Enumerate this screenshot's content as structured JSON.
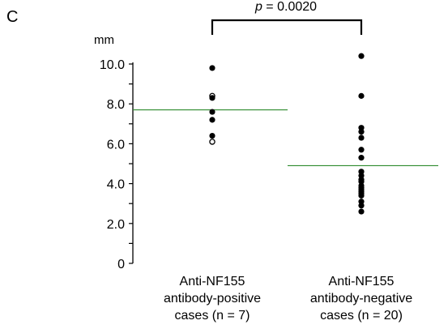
{
  "panel_label": "C",
  "chart_data": {
    "type": "scatter",
    "ylabel": "mm",
    "ylim": [
      0,
      10
    ],
    "yticks": [
      {
        "value": 0,
        "label": "0"
      },
      {
        "value": 2,
        "label": "2.0"
      },
      {
        "value": 4,
        "label": "4.0"
      },
      {
        "value": 6,
        "label": "6.0"
      },
      {
        "value": 8,
        "label": "8.0"
      },
      {
        "value": 10,
        "label": "10.0"
      }
    ],
    "categories": [
      {
        "label_lines": [
          "Anti-NF155",
          "antibody-positive",
          "cases (n = 7)"
        ],
        "mean": 7.7,
        "points": [
          {
            "y": 9.8,
            "filled": true
          },
          {
            "y": 8.4,
            "filled": false
          },
          {
            "y": 8.3,
            "filled": true
          },
          {
            "y": 7.6,
            "filled": true
          },
          {
            "y": 7.2,
            "filled": true
          },
          {
            "y": 6.4,
            "filled": true
          },
          {
            "y": 6.1,
            "filled": false
          }
        ]
      },
      {
        "label_lines": [
          "Anti-NF155",
          "antibody-negative",
          "cases (n = 20)"
        ],
        "mean": 4.9,
        "points": [
          {
            "y": 10.4,
            "filled": true
          },
          {
            "y": 8.4,
            "filled": true
          },
          {
            "y": 6.8,
            "filled": true
          },
          {
            "y": 6.6,
            "filled": true
          },
          {
            "y": 6.3,
            "filled": true
          },
          {
            "y": 5.7,
            "filled": true
          },
          {
            "y": 5.3,
            "filled": true
          },
          {
            "y": 4.6,
            "filled": true
          },
          {
            "y": 4.4,
            "filled": true
          },
          {
            "y": 4.2,
            "filled": true
          },
          {
            "y": 4.1,
            "filled": true
          },
          {
            "y": 3.9,
            "filled": true
          },
          {
            "y": 3.8,
            "filled": true
          },
          {
            "y": 3.7,
            "filled": true
          },
          {
            "y": 3.6,
            "filled": true
          },
          {
            "y": 3.5,
            "filled": true
          },
          {
            "y": 3.4,
            "filled": true
          },
          {
            "y": 3.1,
            "filled": true
          },
          {
            "y": 2.9,
            "filled": true
          },
          {
            "y": 2.6,
            "filled": true
          }
        ]
      }
    ],
    "annotation": {
      "p_symbol": "p",
      "p_text": " = 0.0020"
    },
    "colors": {
      "mean_line": "#2e8b2e",
      "points": "#000000",
      "axis": "#000000"
    }
  }
}
